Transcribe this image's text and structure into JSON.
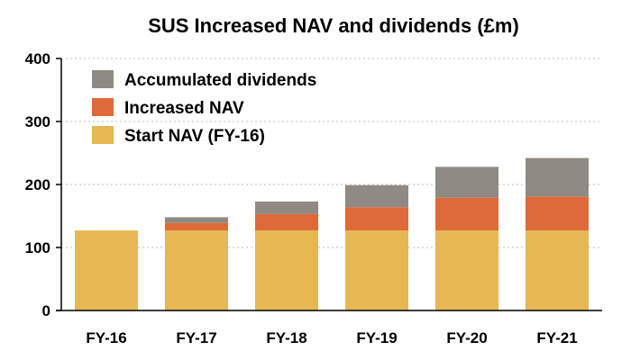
{
  "chart_data": {
    "type": "bar",
    "stacked": true,
    "title": "SUS Increased NAV and dividends (£m)",
    "xlabel": "",
    "ylabel": "",
    "categories": [
      "FY-16",
      "FY-17",
      "FY-18",
      "FY-19",
      "FY-20",
      "FY-21"
    ],
    "series": [
      {
        "name": "Start NAV (FY-16)",
        "color": "#e5b853",
        "values": [
          127,
          127,
          127,
          127,
          127,
          127
        ]
      },
      {
        "name": "Increased NAV",
        "color": "#de6a3a",
        "values": [
          0,
          12,
          26,
          37,
          52,
          54
        ]
      },
      {
        "name": "Accumulated dividends",
        "color": "#8f8a83",
        "values": [
          0,
          9,
          20,
          35,
          49,
          61
        ]
      }
    ],
    "ylim": [
      0,
      400
    ],
    "yticks": [
      0,
      100,
      200,
      300,
      400
    ],
    "grid": true,
    "legend": "top-left"
  }
}
